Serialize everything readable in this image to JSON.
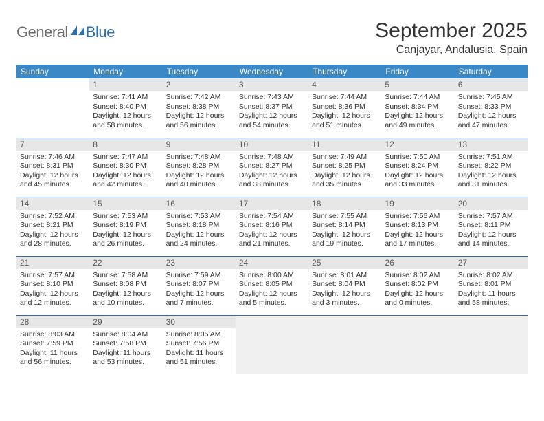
{
  "logo": {
    "general": "General",
    "blue": "Blue"
  },
  "title": "September 2025",
  "location": "Canjayar, Andalusia, Spain",
  "colors": {
    "header_bg": "#3a88c6",
    "header_fg": "#ffffff",
    "daynum_bg": "#e7e7e7",
    "daynum_fg": "#5a5a5a",
    "border": "#2c6fae",
    "logo_gray": "#6a6a6a",
    "logo_blue": "#2c6fae",
    "trailing_empty_bg": "#f0f0f0"
  },
  "weekdays": [
    "Sunday",
    "Monday",
    "Tuesday",
    "Wednesday",
    "Thursday",
    "Friday",
    "Saturday"
  ],
  "weeks": [
    [
      {
        "day": "",
        "sunrise": "",
        "sunset": "",
        "daylight": ""
      },
      {
        "day": "1",
        "sunrise": "Sunrise: 7:41 AM",
        "sunset": "Sunset: 8:40 PM",
        "daylight": "Daylight: 12 hours and 58 minutes."
      },
      {
        "day": "2",
        "sunrise": "Sunrise: 7:42 AM",
        "sunset": "Sunset: 8:38 PM",
        "daylight": "Daylight: 12 hours and 56 minutes."
      },
      {
        "day": "3",
        "sunrise": "Sunrise: 7:43 AM",
        "sunset": "Sunset: 8:37 PM",
        "daylight": "Daylight: 12 hours and 54 minutes."
      },
      {
        "day": "4",
        "sunrise": "Sunrise: 7:44 AM",
        "sunset": "Sunset: 8:36 PM",
        "daylight": "Daylight: 12 hours and 51 minutes."
      },
      {
        "day": "5",
        "sunrise": "Sunrise: 7:44 AM",
        "sunset": "Sunset: 8:34 PM",
        "daylight": "Daylight: 12 hours and 49 minutes."
      },
      {
        "day": "6",
        "sunrise": "Sunrise: 7:45 AM",
        "sunset": "Sunset: 8:33 PM",
        "daylight": "Daylight: 12 hours and 47 minutes."
      }
    ],
    [
      {
        "day": "7",
        "sunrise": "Sunrise: 7:46 AM",
        "sunset": "Sunset: 8:31 PM",
        "daylight": "Daylight: 12 hours and 45 minutes."
      },
      {
        "day": "8",
        "sunrise": "Sunrise: 7:47 AM",
        "sunset": "Sunset: 8:30 PM",
        "daylight": "Daylight: 12 hours and 42 minutes."
      },
      {
        "day": "9",
        "sunrise": "Sunrise: 7:48 AM",
        "sunset": "Sunset: 8:28 PM",
        "daylight": "Daylight: 12 hours and 40 minutes."
      },
      {
        "day": "10",
        "sunrise": "Sunrise: 7:48 AM",
        "sunset": "Sunset: 8:27 PM",
        "daylight": "Daylight: 12 hours and 38 minutes."
      },
      {
        "day": "11",
        "sunrise": "Sunrise: 7:49 AM",
        "sunset": "Sunset: 8:25 PM",
        "daylight": "Daylight: 12 hours and 35 minutes."
      },
      {
        "day": "12",
        "sunrise": "Sunrise: 7:50 AM",
        "sunset": "Sunset: 8:24 PM",
        "daylight": "Daylight: 12 hours and 33 minutes."
      },
      {
        "day": "13",
        "sunrise": "Sunrise: 7:51 AM",
        "sunset": "Sunset: 8:22 PM",
        "daylight": "Daylight: 12 hours and 31 minutes."
      }
    ],
    [
      {
        "day": "14",
        "sunrise": "Sunrise: 7:52 AM",
        "sunset": "Sunset: 8:21 PM",
        "daylight": "Daylight: 12 hours and 28 minutes."
      },
      {
        "day": "15",
        "sunrise": "Sunrise: 7:53 AM",
        "sunset": "Sunset: 8:19 PM",
        "daylight": "Daylight: 12 hours and 26 minutes."
      },
      {
        "day": "16",
        "sunrise": "Sunrise: 7:53 AM",
        "sunset": "Sunset: 8:18 PM",
        "daylight": "Daylight: 12 hours and 24 minutes."
      },
      {
        "day": "17",
        "sunrise": "Sunrise: 7:54 AM",
        "sunset": "Sunset: 8:16 PM",
        "daylight": "Daylight: 12 hours and 21 minutes."
      },
      {
        "day": "18",
        "sunrise": "Sunrise: 7:55 AM",
        "sunset": "Sunset: 8:14 PM",
        "daylight": "Daylight: 12 hours and 19 minutes."
      },
      {
        "day": "19",
        "sunrise": "Sunrise: 7:56 AM",
        "sunset": "Sunset: 8:13 PM",
        "daylight": "Daylight: 12 hours and 17 minutes."
      },
      {
        "day": "20",
        "sunrise": "Sunrise: 7:57 AM",
        "sunset": "Sunset: 8:11 PM",
        "daylight": "Daylight: 12 hours and 14 minutes."
      }
    ],
    [
      {
        "day": "21",
        "sunrise": "Sunrise: 7:57 AM",
        "sunset": "Sunset: 8:10 PM",
        "daylight": "Daylight: 12 hours and 12 minutes."
      },
      {
        "day": "22",
        "sunrise": "Sunrise: 7:58 AM",
        "sunset": "Sunset: 8:08 PM",
        "daylight": "Daylight: 12 hours and 10 minutes."
      },
      {
        "day": "23",
        "sunrise": "Sunrise: 7:59 AM",
        "sunset": "Sunset: 8:07 PM",
        "daylight": "Daylight: 12 hours and 7 minutes."
      },
      {
        "day": "24",
        "sunrise": "Sunrise: 8:00 AM",
        "sunset": "Sunset: 8:05 PM",
        "daylight": "Daylight: 12 hours and 5 minutes."
      },
      {
        "day": "25",
        "sunrise": "Sunrise: 8:01 AM",
        "sunset": "Sunset: 8:04 PM",
        "daylight": "Daylight: 12 hours and 3 minutes."
      },
      {
        "day": "26",
        "sunrise": "Sunrise: 8:02 AM",
        "sunset": "Sunset: 8:02 PM",
        "daylight": "Daylight: 12 hours and 0 minutes."
      },
      {
        "day": "27",
        "sunrise": "Sunrise: 8:02 AM",
        "sunset": "Sunset: 8:01 PM",
        "daylight": "Daylight: 11 hours and 58 minutes."
      }
    ],
    [
      {
        "day": "28",
        "sunrise": "Sunrise: 8:03 AM",
        "sunset": "Sunset: 7:59 PM",
        "daylight": "Daylight: 11 hours and 56 minutes."
      },
      {
        "day": "29",
        "sunrise": "Sunrise: 8:04 AM",
        "sunset": "Sunset: 7:58 PM",
        "daylight": "Daylight: 11 hours and 53 minutes."
      },
      {
        "day": "30",
        "sunrise": "Sunrise: 8:05 AM",
        "sunset": "Sunset: 7:56 PM",
        "daylight": "Daylight: 11 hours and 51 minutes."
      },
      {
        "day": "",
        "sunrise": "",
        "sunset": "",
        "daylight": "",
        "trailing": true
      },
      {
        "day": "",
        "sunrise": "",
        "sunset": "",
        "daylight": "",
        "trailing": true
      },
      {
        "day": "",
        "sunrise": "",
        "sunset": "",
        "daylight": "",
        "trailing": true
      },
      {
        "day": "",
        "sunrise": "",
        "sunset": "",
        "daylight": "",
        "trailing": true
      }
    ]
  ]
}
